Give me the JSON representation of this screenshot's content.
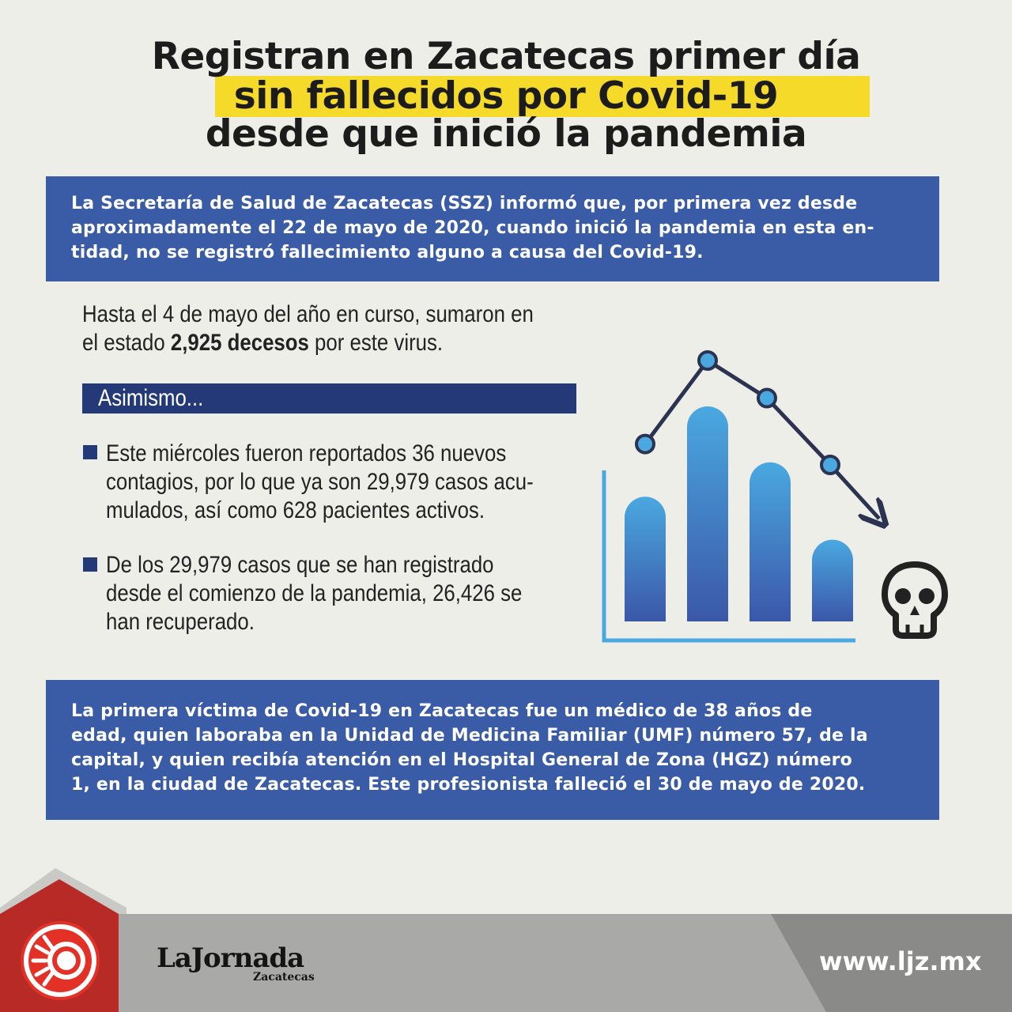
{
  "title": {
    "line1": "Registran en Zacatecas primer día",
    "line2": "sin fallecidos por Covid-19",
    "line3": "desde que inició la pandemia"
  },
  "intro": {
    "lines": [
      "La Secretaría de Salud de Zacatecas (SSZ) informó que, por primera vez desde",
      "aproximadamente el 22 de mayo de 2020, cuando inició la pandemia en esta en-",
      "tidad, no se registró fallecimiento alguno a causa del Covid-19."
    ]
  },
  "deaths": {
    "line1": "Hasta el 4 de mayo del año en curso, sumaron en",
    "line2_prefix": "el estado ",
    "line2_bold": "2,925 decesos",
    "line2_suffix": " por este virus."
  },
  "asimismo": {
    "label": "Asimismo..."
  },
  "bullets": [
    {
      "lines": [
        "Este miércoles fueron reportados 36 nuevos",
        "contagios, por lo que ya son 29,979 casos acu-",
        "mulados, así como 628 pacientes activos."
      ]
    },
    {
      "lines": [
        "De los 29,979 casos que se han registrado",
        "desde el comienzo de la pandemia, 26,426 se",
        "han recuperado."
      ]
    }
  ],
  "illustration": {
    "bar_levels": [
      0.58,
      1.0,
      0.74,
      0.38
    ],
    "line_points": [
      0.6,
      1.0,
      0.82,
      0.5
    ],
    "icon": "skull-icon",
    "colors": {
      "bar_top": "#4aa8e0",
      "bar_bottom": "#3b57a8",
      "line": "#2c3350",
      "marker": "#4aa8e0",
      "axis": "#4aa8e0"
    }
  },
  "bottom": {
    "lines": [
      "La primera víctima de Covid-19 en Zacatecas fue un médico de 38 años de",
      "edad, quien laboraba en la Unidad de Medicina Familiar (UMF) número 57, de la",
      "capital, y quien recibía atención en el Hospital General de Zona (HGZ) número",
      "1, en la ciudad de Zacatecas. Este profesionista falleció el 30 de mayo de 2020."
    ]
  },
  "footer": {
    "logo": "LaJornada",
    "logo_sub": "Zacatecas",
    "url": "www.ljz.mx"
  },
  "colors": {
    "blue_box": "#3a5ba6",
    "dark_blue": "#243a78",
    "highlight": "#f6da2a"
  }
}
